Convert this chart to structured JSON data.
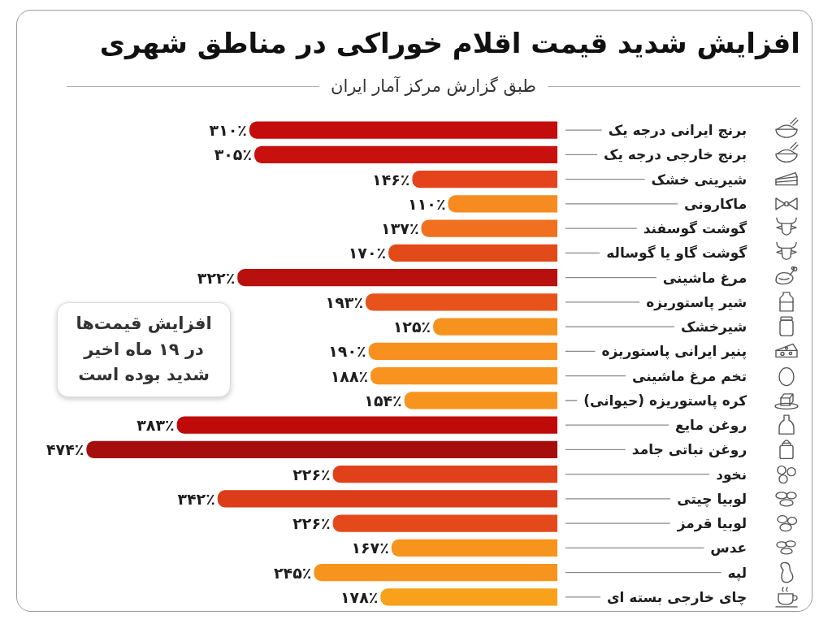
{
  "chart_data": {
    "type": "bar",
    "orientation": "horizontal",
    "title": "افزایش شدید قیمت اقلام خوراکی در مناطق شهری",
    "subtitle": "طبق گزارش مرکز آمار ایران",
    "tick_labels": "y",
    "categories": [
      "برنج ایرانی درجه یک",
      "برنج خارجی درجه یک",
      "شیرینی خشک",
      "ماکارونی",
      "گوشت گوسفند",
      "گوشت گاو یا گوساله",
      "مرغ ماشینی",
      "شیر پاستوریزه",
      "شیرخشک",
      "پنیر ایرانی پاستوریزه",
      "تخم مرغ ماشینی",
      "کره پاستوریزه (حیوانی)",
      "روغن مایع",
      "روغن نباتی جامد",
      "نخود",
      "لوبیا چیتی",
      "لوبیا قرمز",
      "عدس",
      "لپه",
      "چای خارجی بسته ای"
    ],
    "values": [
      310,
      305,
      146,
      110,
      137,
      170,
      322,
      193,
      125,
      190,
      188,
      154,
      383,
      474,
      226,
      342,
      226,
      167,
      245,
      178
    ],
    "value_labels": [
      "۳۱۰٪",
      "۳۰۵٪",
      "۱۴۶٪",
      "۱۱۰٪",
      "۱۳۷٪",
      "۱۷۰٪",
      "۳۲۲٪",
      "۱۹۳٪",
      "۱۲۵٪",
      "۱۹۰٪",
      "۱۸۸٪",
      "۱۵۴٪",
      "۳۸۳٪",
      "۴۷۴٪",
      "۲۲۶٪",
      "۳۴۲٪",
      "۲۲۶٪",
      "۱۶۷٪",
      "۲۴۵٪",
      "۱۷۸٪"
    ],
    "colors": [
      "#c40c0c",
      "#c8100e",
      "#e4431b",
      "#f68b1f",
      "#f0701f",
      "#e24a1a",
      "#b80f0f",
      "#e8521b",
      "#f6921e",
      "#f7901e",
      "#f7931e",
      "#f7941d",
      "#bf0a0a",
      "#a60d0d",
      "#e0401a",
      "#dc3c18",
      "#e4491b",
      "#f7941d",
      "#f7941d",
      "#f9a11b"
    ],
    "annotations": [
      "افزایش قیمت‌ها در ۱۹ ماه اخیر شدید بوده است"
    ]
  }
}
